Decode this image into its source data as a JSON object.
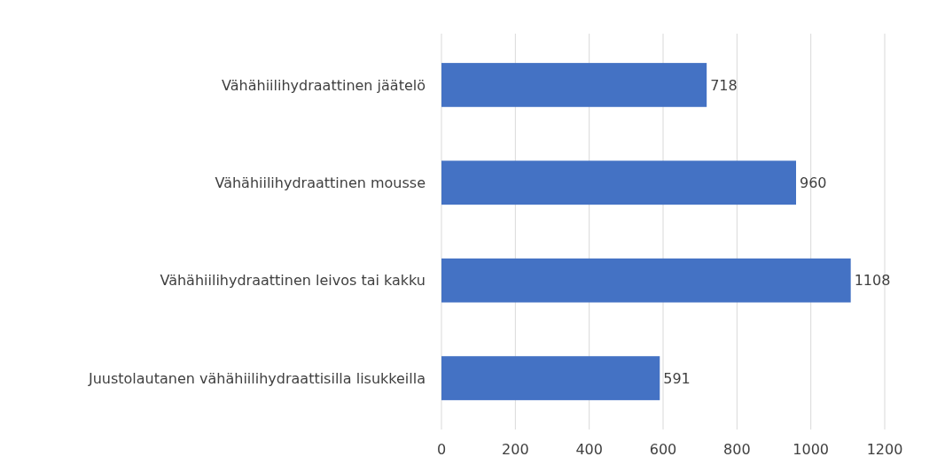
{
  "chart_data": {
    "type": "bar",
    "orientation": "horizontal",
    "categories": [
      "Vähähiilihydraattinen jäätelö",
      "Vähähiilihydraattinen mousse",
      "Vähähiilihydraattinen leivos tai kakku",
      "Juustolautanen vähähiilihydraattisilla lisukkeilla"
    ],
    "values": [
      718,
      960,
      1108,
      591
    ],
    "color": "#4472c4",
    "xlim": [
      0,
      1200
    ],
    "xticks": [
      0,
      200,
      400,
      600,
      800,
      1000,
      1200
    ],
    "grid": "x",
    "data_labels": true
  }
}
